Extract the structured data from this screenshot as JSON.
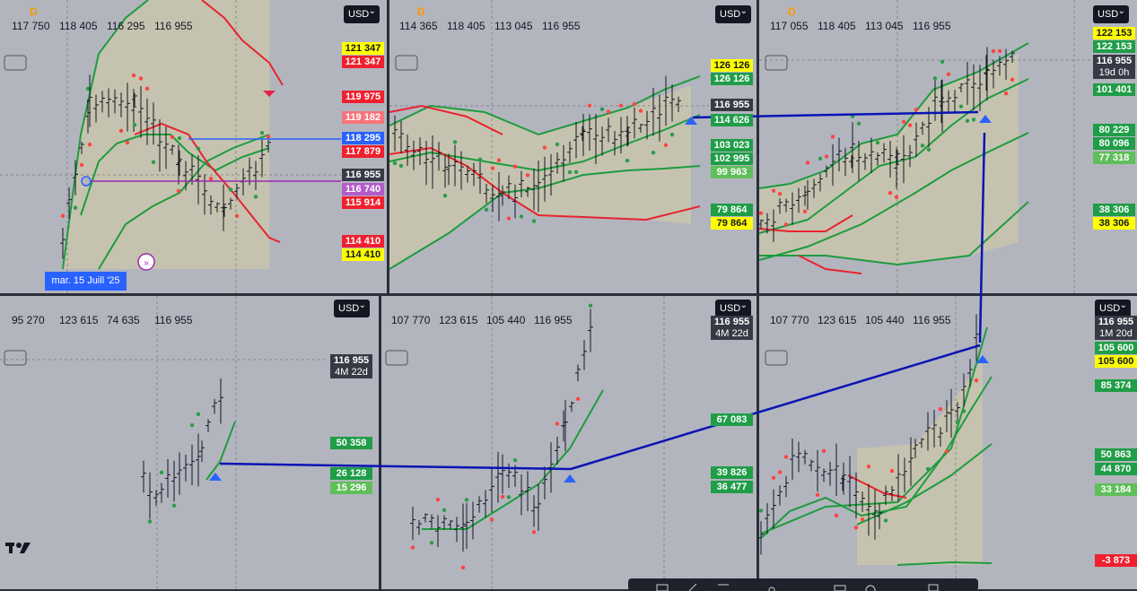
{
  "date_label": "mar. 15 Juill '25",
  "panels": [
    {
      "interval": "D",
      "ohlc": [
        "117 750",
        "118 405",
        "116 295",
        "116 955"
      ],
      "currency": "USD",
      "price_labels": [
        "121 347",
        "121 347",
        "119 975",
        "119 182",
        "118 295",
        "117 879",
        "116 955",
        "116 740",
        "115 914",
        "114 410",
        "114 410"
      ]
    },
    {
      "interval": "D",
      "ohlc": [
        "114 365",
        "118 405",
        "113 045",
        "116 955"
      ],
      "currency": "USD",
      "price_labels": [
        "126 126",
        "126 126",
        "116 955",
        "114 626",
        "103 023",
        "102 995",
        "99 963",
        "79 864",
        "79 864"
      ]
    },
    {
      "interval": "D",
      "ohlc": [
        "117 055",
        "118 405",
        "113 045",
        "116 955"
      ],
      "currency": "USD",
      "price_labels": [
        "122 153",
        "122 153",
        "116 955",
        "101 401",
        "80 229",
        "80 096",
        "77 318",
        "38 306",
        "38 306"
      ],
      "countdown": "19d 0h"
    },
    {
      "ohlc": [
        "95 270",
        "123 615",
        "74 635",
        "116 955"
      ],
      "currency": "USD",
      "price_labels": [
        "116 955",
        "50 358",
        "26 128",
        "15 296"
      ],
      "countdown": "4M 22d"
    },
    {
      "ohlc": [
        "107 770",
        "123 615",
        "105 440",
        "116 955"
      ],
      "currency": "USD",
      "price_labels": [
        "116 955",
        "67 083",
        "39 826",
        "36 477"
      ],
      "countdown": "4M 22d"
    },
    {
      "ohlc": [
        "107 770",
        "123 615",
        "105 440",
        "116 955"
      ],
      "currency": "USD",
      "price_labels": [
        "116 955",
        "105 600",
        "105 600",
        "85 374",
        "50 863",
        "44 870",
        "33 184",
        "-3 873"
      ],
      "countdown": "1M 20d"
    }
  ]
}
